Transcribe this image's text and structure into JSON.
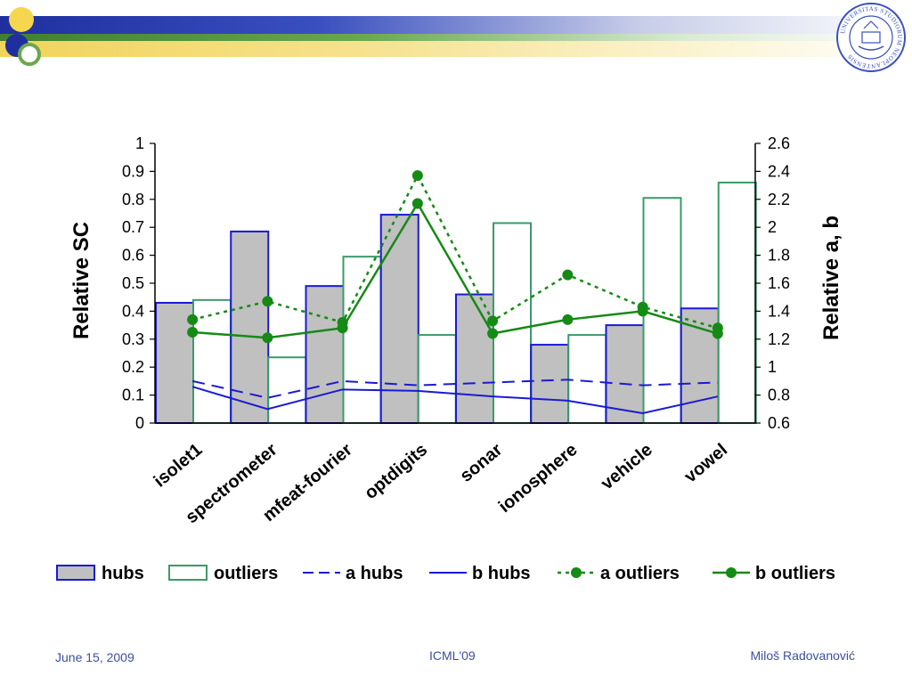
{
  "footer": {
    "date": "June 15, 2009",
    "conference": "ICML'09",
    "author": "Miloš Radovanović"
  },
  "seal": {
    "text": "UNIVERSITAS STUDIORUM NEOPLANTENSIS"
  },
  "colors": {
    "hubs_fill": "#c0c0c0",
    "hubs_stroke": "#1a1ad4",
    "outliers_stroke": "#3a9a6a",
    "b_hubs": "#1a1ad4",
    "a_hubs": "#1a1ad4",
    "a_outliers": "#158a15",
    "b_outliers": "#158a15"
  },
  "chart_data": {
    "type": "bar",
    "categories": [
      "isolet1",
      "spectrometer",
      "mfeat-fourier",
      "optdigits",
      "sonar",
      "ionosphere",
      "vehicle",
      "vowel"
    ],
    "ylabel": "Relative SC",
    "y2label": "Relative a, b",
    "ylim": [
      0,
      1
    ],
    "yticks": [
      "0",
      "0.1",
      "0.2",
      "0.3",
      "0.4",
      "0.5",
      "0.6",
      "0.7",
      "0.8",
      "0.9",
      "1"
    ],
    "y2lim": [
      0.6,
      2.6
    ],
    "y2ticks": [
      "0.6",
      "0.8",
      "1",
      "1.2",
      "1.4",
      "1.6",
      "1.8",
      "2",
      "2.2",
      "2.4",
      "2.6"
    ],
    "legend_position": "bottom",
    "series": [
      {
        "name": "hubs",
        "kind": "bar",
        "axis": "left",
        "values": [
          0.43,
          0.685,
          0.49,
          0.745,
          0.46,
          0.28,
          0.35,
          0.41
        ]
      },
      {
        "name": "outliers",
        "kind": "bar",
        "axis": "left",
        "values": [
          0.44,
          0.235,
          0.595,
          0.315,
          0.715,
          0.315,
          0.805,
          0.86
        ]
      },
      {
        "name": "a hubs",
        "kind": "line",
        "style": "dashed",
        "axis": "right",
        "values": [
          0.9,
          0.78,
          0.9,
          0.87,
          0.89,
          0.91,
          0.87,
          0.89
        ]
      },
      {
        "name": "b hubs",
        "kind": "line",
        "style": "solid",
        "axis": "right",
        "values": [
          0.86,
          0.7,
          0.84,
          0.83,
          0.79,
          0.76,
          0.67,
          0.79
        ]
      },
      {
        "name": "a outliers",
        "kind": "line",
        "style": "dotted",
        "marker": "circle",
        "axis": "right",
        "values": [
          1.34,
          1.47,
          1.32,
          2.37,
          1.33,
          1.66,
          1.43,
          1.28
        ]
      },
      {
        "name": "b outliers",
        "kind": "line",
        "style": "solid",
        "marker": "circle",
        "axis": "right",
        "values": [
          1.25,
          1.21,
          1.28,
          2.17,
          1.24,
          1.34,
          1.4,
          1.24
        ]
      }
    ]
  }
}
